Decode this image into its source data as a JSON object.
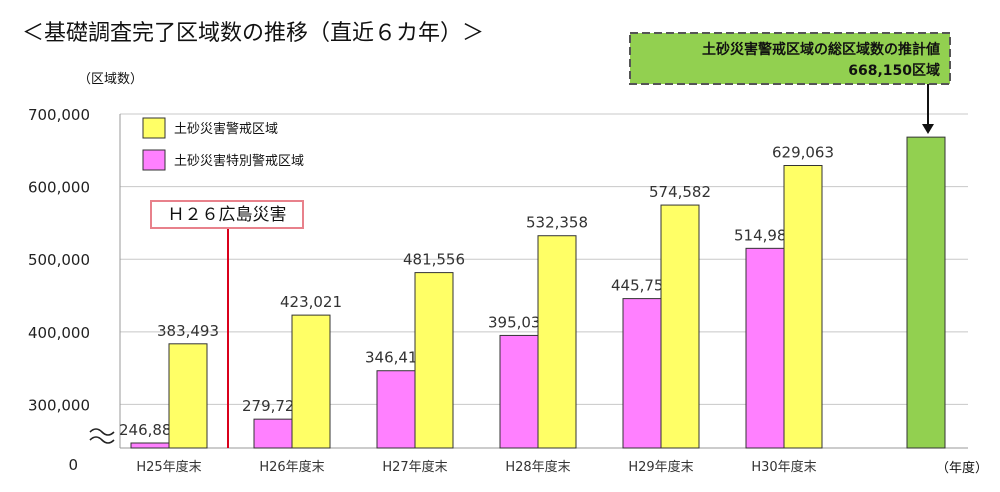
{
  "title": "＜基礎調査完了区域数の推移（直近６カ年）＞",
  "y_unit_label": "（区域数）",
  "x_unit_label": "（年度）",
  "zero_label": "0",
  "event_label": "Ｈ２６広島災害",
  "callout": {
    "line1": "土砂災害警戒区域の総区域数の推計値",
    "line2": "668,150区域"
  },
  "colors": {
    "warning": "#ffff66",
    "special": "#ff80ff",
    "estimate": "#92d050",
    "event_line": "#d9001b",
    "event_border": "#e8818b"
  },
  "chart_data": {
    "type": "bar",
    "categories": [
      "H25年度末",
      "H26年度末",
      "H27年度末",
      "H28年度末",
      "H29年度末",
      "H30年度末",
      ""
    ],
    "series": [
      {
        "name": "土砂災害特別警戒区域",
        "key": "special",
        "values": [
          246882,
          279724,
          346413,
          395038,
          445758,
          514986,
          null
        ],
        "labels": [
          "246,882",
          "279,724",
          "346,413",
          "395,038",
          "445,758",
          "514,986",
          ""
        ]
      },
      {
        "name": "土砂災害警戒区域",
        "key": "warning",
        "values": [
          383493,
          423021,
          481556,
          532358,
          574582,
          629063,
          null
        ],
        "labels": [
          "383,493",
          "423,021",
          "481,556",
          "532,358",
          "574,582",
          "629,063",
          ""
        ]
      }
    ],
    "estimate": {
      "value": 668150
    },
    "ylim": [
      240000,
      700000
    ],
    "yticks": [
      300000,
      400000,
      500000,
      600000,
      700000
    ],
    "ytick_labels": [
      "300,000",
      "400,000",
      "500,000",
      "600,000",
      "700,000"
    ],
    "axis_break": true,
    "grid": true,
    "legend_position": "top-left"
  }
}
